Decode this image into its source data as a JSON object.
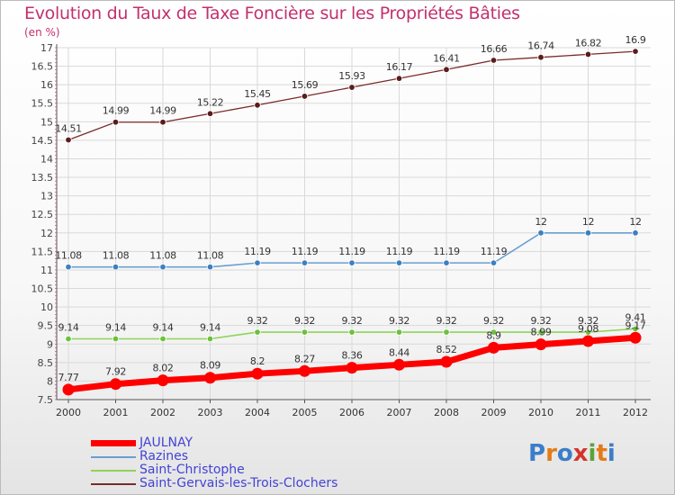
{
  "chart_data": {
    "type": "line",
    "title": "Evolution du Taux de Taxe Foncière sur les Propriétés Bâties",
    "ylabel": "(en %)",
    "xlabel": "",
    "x": [
      "2000",
      "2001",
      "2002",
      "2003",
      "2004",
      "2005",
      "2006",
      "2007",
      "2008",
      "2009",
      "2010",
      "2011",
      "2012"
    ],
    "ylim": [
      7.5,
      17
    ],
    "yticks": [
      "7.5",
      "8",
      "8.5",
      "9",
      "9.5",
      "10",
      "10.5",
      "11",
      "11.5",
      "12",
      "12.5",
      "13",
      "13.5",
      "14",
      "14.5",
      "15",
      "15.5",
      "16",
      "16.5",
      "17"
    ],
    "grid": true,
    "legend_position": "bottom-left",
    "series": [
      {
        "name": "JAULNAY",
        "color": "#ff0000",
        "values": [
          7.77,
          7.92,
          8.02,
          8.09,
          8.2,
          8.27,
          8.36,
          8.44,
          8.52,
          8.9,
          8.99,
          9.08,
          9.17
        ],
        "labels": [
          "7.77",
          "7.92",
          "8.02",
          "8.09",
          "8.2",
          "8.27",
          "8.36",
          "8.44",
          "8.52",
          "8.9",
          "8.99",
          "9.08",
          "9.17"
        ]
      },
      {
        "name": "Razines",
        "color": "#6a9fd0",
        "values": [
          11.08,
          11.08,
          11.08,
          11.08,
          11.19,
          11.19,
          11.19,
          11.19,
          11.19,
          11.19,
          12,
          12,
          12
        ],
        "labels": [
          "11.08",
          "11.08",
          "11.08",
          "11.08",
          "11.19",
          "11.19",
          "11.19",
          "11.19",
          "11.19",
          "11.19",
          "12",
          "12",
          "12"
        ]
      },
      {
        "name": "Saint-Christophe",
        "color": "#8fd458",
        "values": [
          9.14,
          9.14,
          9.14,
          9.14,
          9.32,
          9.32,
          9.32,
          9.32,
          9.32,
          9.32,
          9.32,
          9.32,
          9.41
        ],
        "labels": [
          "9.14",
          "9.14",
          "9.14",
          "9.14",
          "9.32",
          "9.32",
          "9.32",
          "9.32",
          "9.32",
          "9.32",
          "9.32",
          "9.32",
          "9.41"
        ]
      },
      {
        "name": "Saint-Gervais-les-Trois-Clochers",
        "color": "#7a2b2b",
        "values": [
          14.51,
          14.99,
          14.99,
          15.22,
          15.45,
          15.69,
          15.93,
          16.17,
          16.41,
          16.66,
          16.74,
          16.82,
          16.9
        ],
        "labels": [
          "14.51",
          "14.99",
          "14.99",
          "15.22",
          "15.45",
          "15.69",
          "15.93",
          "16.17",
          "16.41",
          "16.66",
          "16.74",
          "16.82",
          "16.9"
        ]
      }
    ]
  },
  "logo": {
    "letters": [
      "P",
      "r",
      "o",
      "x",
      "i",
      "t",
      "i"
    ]
  }
}
